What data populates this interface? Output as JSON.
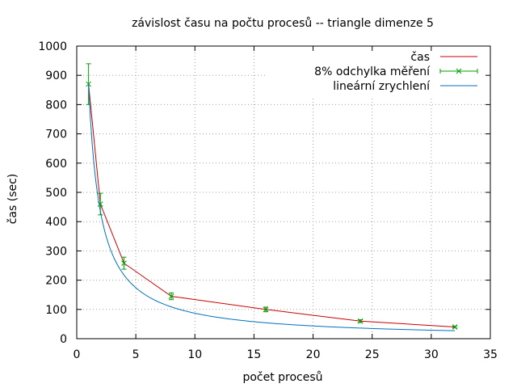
{
  "chart_data": {
    "type": "line",
    "title": "závislost času na počtu procesů -- triangle dimenze 5",
    "xlabel": "počet procesů",
    "ylabel": "čas (sec)",
    "xlim": [
      0,
      35
    ],
    "ylim": [
      0,
      1000
    ],
    "xticks": [
      0,
      5,
      10,
      15,
      20,
      25,
      30,
      35
    ],
    "yticks": [
      0,
      100,
      200,
      300,
      400,
      500,
      600,
      700,
      800,
      900,
      1000
    ],
    "grid": true,
    "legend_position": "top-right",
    "series": [
      {
        "name": "čas",
        "kind": "line",
        "color": "#cc0000",
        "x": [
          1,
          2,
          4,
          8,
          16,
          24,
          32
        ],
        "y": [
          870,
          460,
          258,
          145,
          100,
          60,
          40
        ]
      },
      {
        "name": "8% odchylka měření",
        "kind": "errorbar",
        "color": "#00a000",
        "x": [
          1,
          2,
          4,
          8,
          16,
          24,
          32
        ],
        "y": [
          870,
          460,
          258,
          145,
          100,
          60,
          40
        ],
        "error": [
          69.6,
          36.8,
          20.6,
          11.6,
          8,
          4.8,
          3.2
        ]
      },
      {
        "name": "lineární zrychlení",
        "kind": "curve",
        "color": "#0070c0",
        "function": "870/x",
        "x_range": [
          1,
          32
        ]
      }
    ]
  }
}
